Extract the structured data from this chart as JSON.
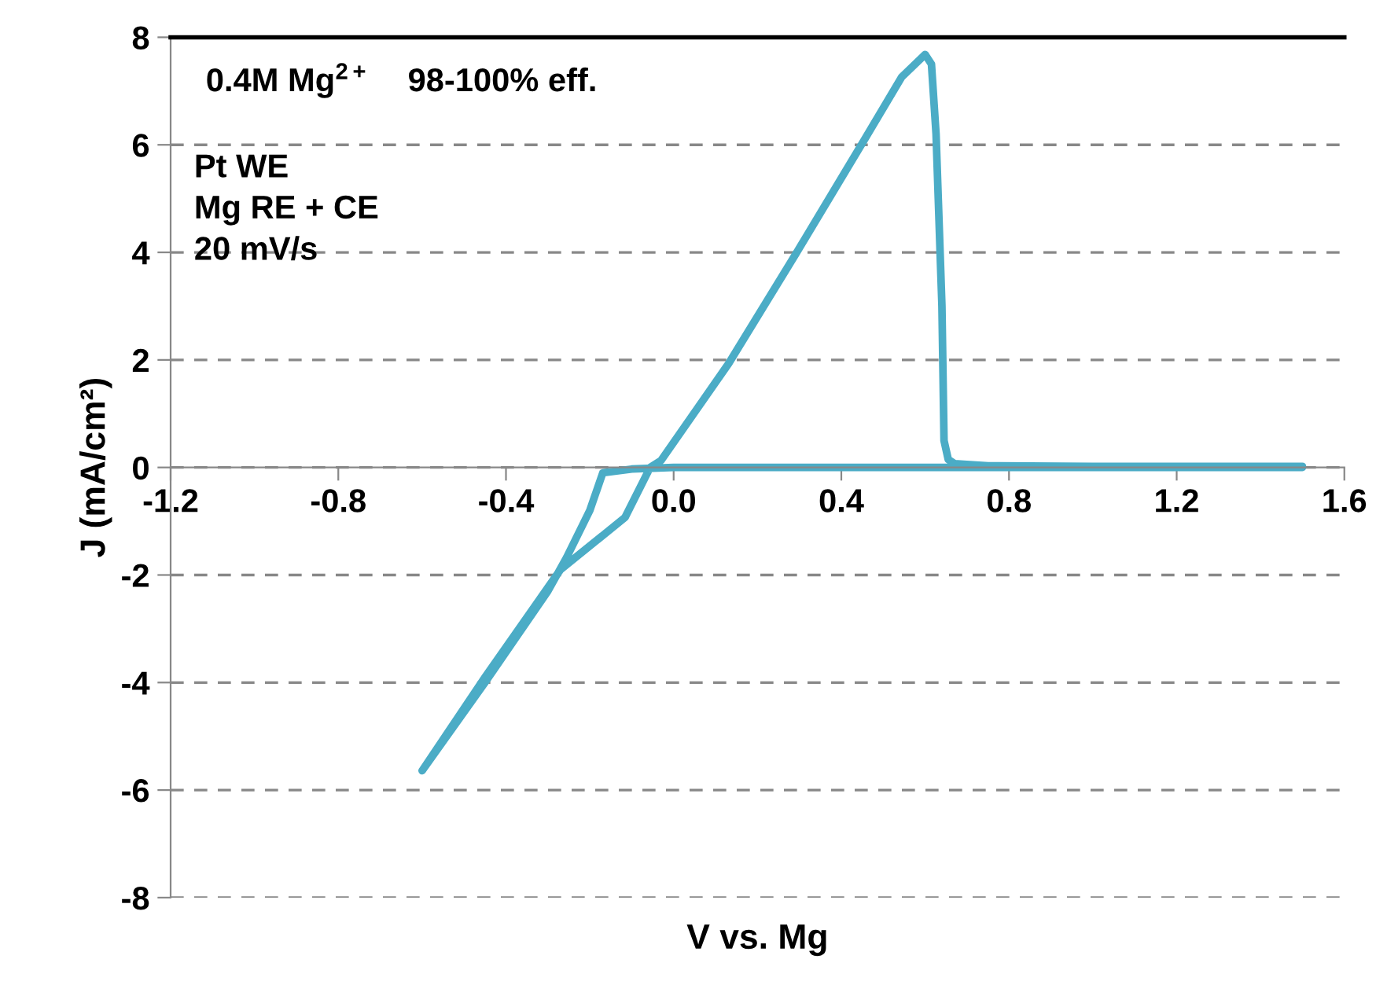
{
  "chart_data": {
    "type": "line",
    "xlabel": "V vs. Mg",
    "ylabel": "J (mA/cm²)",
    "x": [
      1.5,
      1.0,
      0.5,
      0.0,
      -0.1,
      -0.169,
      -0.2,
      -0.255,
      -0.3,
      -0.45,
      -0.6,
      -0.45,
      -0.27,
      -0.116,
      -0.056,
      -0.03,
      0.131,
      0.296,
      0.457,
      0.544,
      0.6,
      0.615,
      0.626,
      0.64,
      0.645,
      0.655,
      0.67,
      0.75,
      1.0,
      1.5
    ],
    "series": [
      {
        "color": "#4bacc6",
        "values": [
          0.0,
          0.0,
          0.0,
          0.0,
          -0.03,
          -0.1,
          -0.8,
          -1.67,
          -2.3,
          -4.0,
          -5.64,
          -3.9,
          -1.9,
          -0.93,
          0.0,
          0.13,
          1.93,
          4.03,
          6.12,
          7.26,
          7.68,
          7.5,
          6.2,
          3.0,
          0.5,
          0.15,
          0.07,
          0.03,
          0.02,
          0.02
        ]
      }
    ],
    "xlim": [
      -1.2,
      1.6
    ],
    "xticks": [
      -1.2,
      -0.8,
      -0.4,
      {
        "value": 0,
        "label": "0.0"
      },
      0.4,
      0.8,
      1.2,
      1.6
    ],
    "ylim": [
      -8,
      8
    ],
    "yticks": [
      -8,
      -6,
      -4,
      -2,
      0,
      2,
      4,
      6,
      8
    ],
    "grid": "y",
    "marker": "none",
    "line_style": "solid",
    "annotations": [
      "0.4M Mg$^{2+}$    98-100% eff.",
      "Pt WE\nMg RE + CE\n20 mV/s"
    ]
  }
}
